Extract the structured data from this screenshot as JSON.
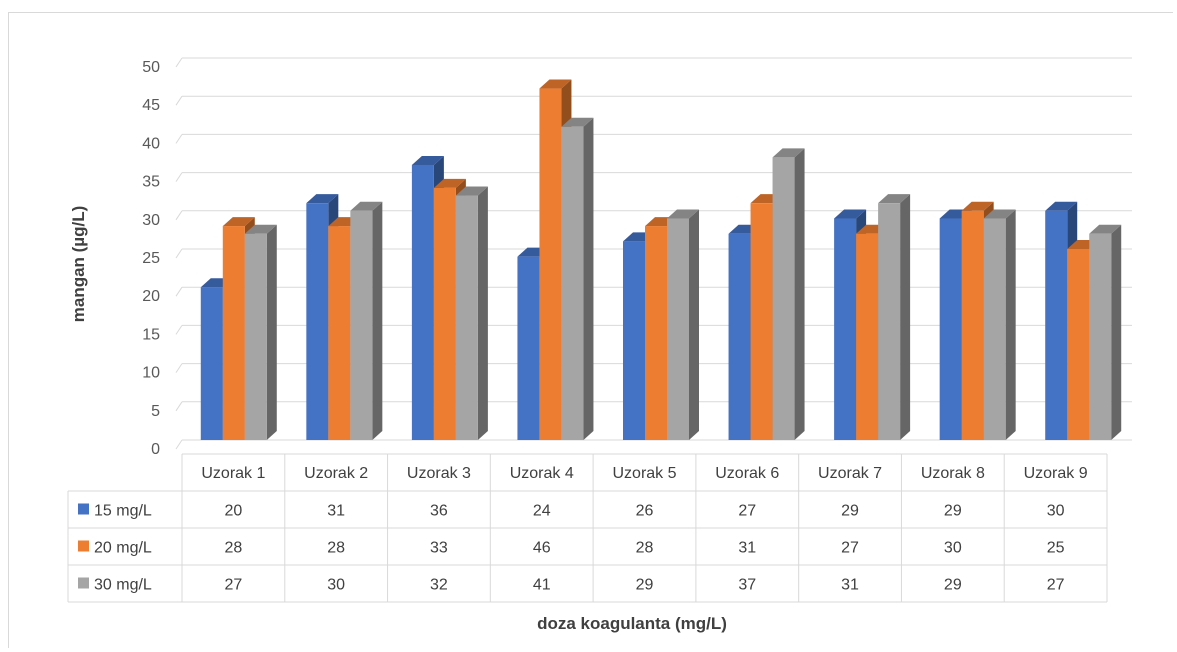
{
  "chart_data": {
    "type": "bar",
    "style": "3d-clustered-column-with-data-table",
    "xlabel": "doza koagulanta (mg/L)",
    "ylabel": "mangan (µg/L)",
    "ylim": [
      0,
      50
    ],
    "yticks": [
      0,
      5,
      10,
      15,
      20,
      25,
      30,
      35,
      40,
      45,
      50
    ],
    "grid": true,
    "legend": "data-table-left",
    "categories": [
      "Uzorak 1",
      "Uzorak 2",
      "Uzorak 3",
      "Uzorak 4",
      "Uzorak 5",
      "Uzorak 6",
      "Uzorak 7",
      "Uzorak 8",
      "Uzorak 9"
    ],
    "series": [
      {
        "name": "15 mg/L",
        "color": "#4472c4",
        "values": [
          20,
          31,
          36,
          24,
          26,
          27,
          29,
          29,
          30
        ]
      },
      {
        "name": "20 mg/L",
        "color": "#ed7d31",
        "values": [
          28,
          28,
          33,
          46,
          28,
          31,
          27,
          30,
          25
        ]
      },
      {
        "name": "30 mg/L",
        "color": "#a5a5a5",
        "values": [
          27,
          30,
          32,
          41,
          29,
          37,
          31,
          29,
          27
        ]
      }
    ]
  }
}
